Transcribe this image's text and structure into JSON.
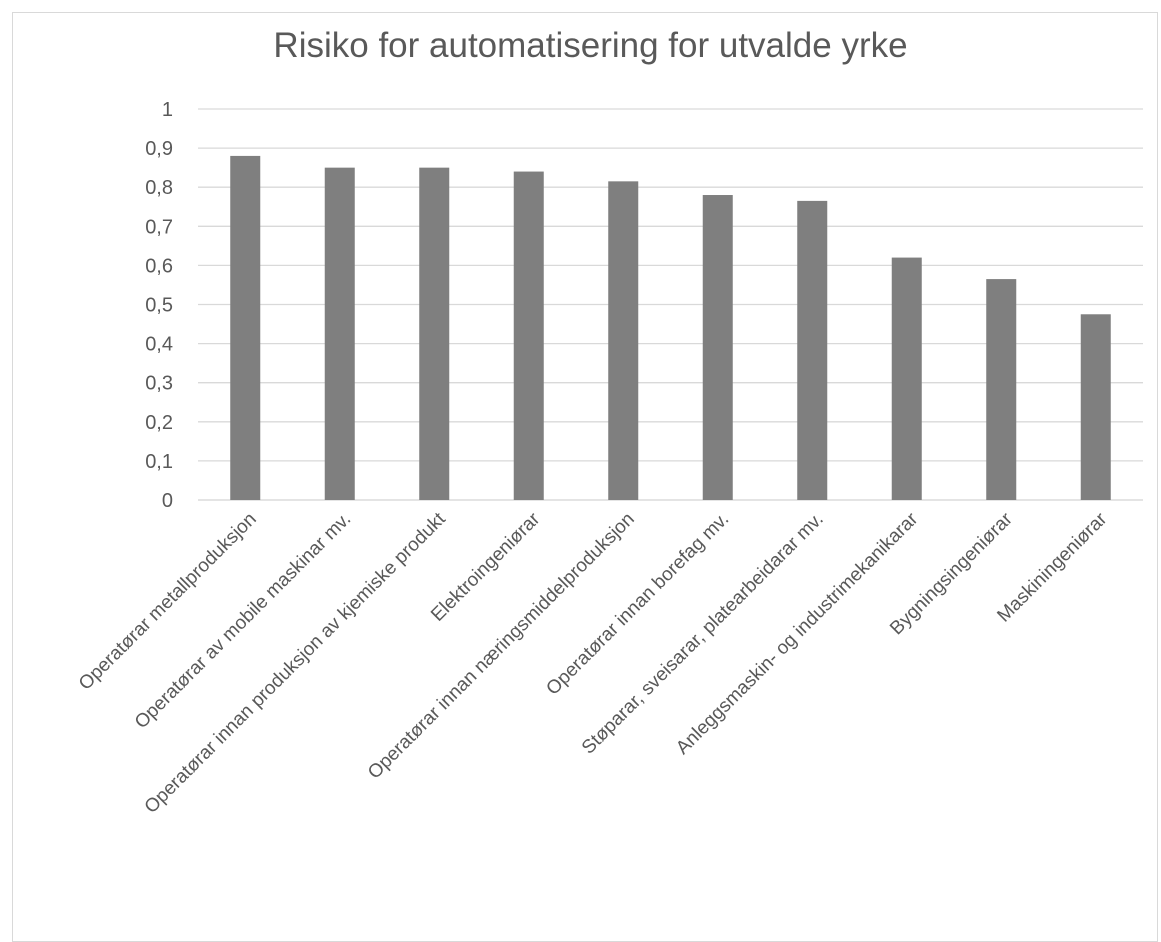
{
  "chart_data": {
    "type": "bar",
    "title": "Risiko for automatisering for utvalde yrke",
    "xlabel": "",
    "ylabel": "",
    "ylim": [
      0,
      1
    ],
    "yticks": [
      "0",
      "0,1",
      "0,2",
      "0,3",
      "0,4",
      "0,5",
      "0,6",
      "0,7",
      "0,8",
      "0,9",
      "1"
    ],
    "grid": true,
    "legend": "none",
    "categories": [
      "Operatørar metallproduksjon",
      "Operatørar av mobile maskinar mv.",
      "Operatørar innan produksjon av kjemiske produkt",
      "Elektroingeniørar",
      "Operatørar innan næringsmiddelproduksjon",
      "Operatørar innan borefag mv.",
      "Støparar, sveisarar, platearbeidarar mv.",
      "Anleggsmaskin- og industrimekanikarar",
      "Bygningsingeniørar",
      "Maskiningeniørar"
    ],
    "values": [
      0.88,
      0.85,
      0.85,
      0.84,
      0.815,
      0.78,
      0.765,
      0.62,
      0.565,
      0.475
    ],
    "bar_color": "#7f7f7f",
    "grid_color": "#d9d9d9",
    "text_color": "#595959"
  }
}
